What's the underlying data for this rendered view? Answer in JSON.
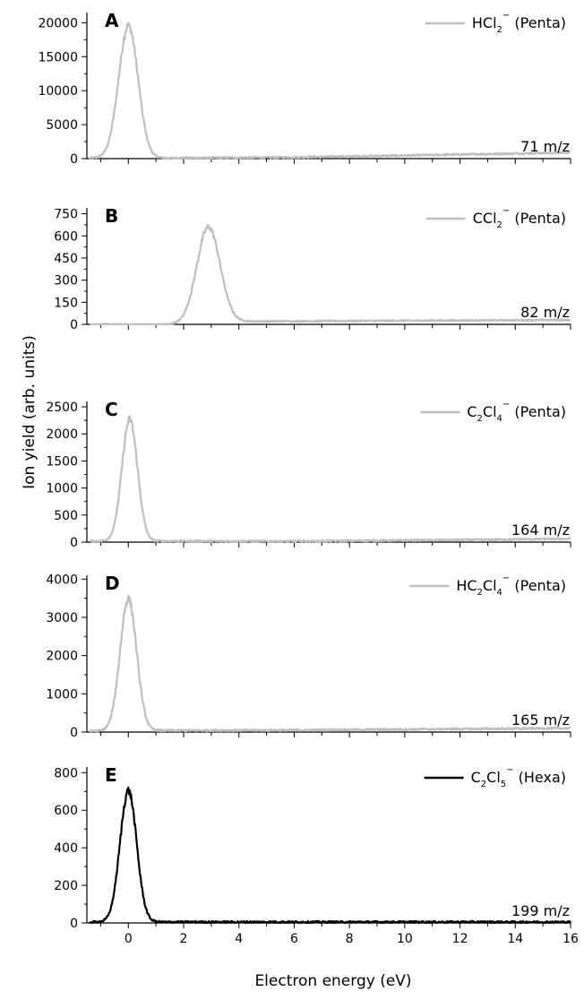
{
  "chart_data": {
    "type": "line",
    "xlabel": "Electron energy (eV)",
    "ylabel": "Ion yield (arb. units)",
    "xlim": [
      -1.5,
      16
    ],
    "xticks": [
      0,
      2,
      4,
      6,
      8,
      10,
      12,
      14,
      16
    ],
    "shared_x_axis": true,
    "panels": [
      {
        "letter": "A",
        "ion": {
          "base": "HCl",
          "sub": "2",
          "sup": "−"
        },
        "molecule": "(Penta)",
        "mz": "71 m/z",
        "color": "#bfbfbf",
        "ylim": [
          0,
          21500
        ],
        "yticks": [
          0,
          5000,
          10000,
          15000,
          20000
        ],
        "peak": {
          "center": 0.0,
          "height": 19500,
          "width": 0.35
        },
        "baseline": [
          [
            -1.4,
            100
          ],
          [
            1.6,
            80
          ],
          [
            6,
            200
          ],
          [
            10,
            450
          ],
          [
            16,
            900
          ]
        ]
      },
      {
        "letter": "B",
        "ion": {
          "base": "CCl",
          "sub": "2",
          "sup": "−"
        },
        "molecule": "(Penta)",
        "mz": "82 m/z",
        "color": "#bfbfbf",
        "ylim": [
          0,
          790
        ],
        "yticks": [
          0,
          150,
          300,
          450,
          600,
          750
        ],
        "peak": {
          "center": 2.9,
          "height": 650,
          "width": 0.42
        },
        "baseline": [
          [
            -1.4,
            0
          ],
          [
            1.5,
            0
          ],
          [
            4.2,
            20
          ],
          [
            10,
            25
          ],
          [
            16,
            30
          ]
        ]
      },
      {
        "letter": "C",
        "ion": {
          "base": "C",
          "sub": "2",
          "base2": "Cl",
          "sub2": "4",
          "sup": "−"
        },
        "molecule": "(Penta)",
        "mz": "164 m/z",
        "color": "#bfbfbf",
        "ylim": [
          0,
          2600
        ],
        "yticks": [
          0,
          500,
          1000,
          1500,
          2000,
          2500
        ],
        "peak": {
          "center": 0.05,
          "height": 2250,
          "width": 0.28
        },
        "baseline": [
          [
            -1.4,
            20
          ],
          [
            1.2,
            20
          ],
          [
            6,
            15
          ],
          [
            12,
            40
          ],
          [
            16,
            60
          ]
        ]
      },
      {
        "letter": "D",
        "ion": {
          "base": "HC",
          "sub": "2",
          "base2": "Cl",
          "sub2": "4",
          "sup": "−"
        },
        "molecule": "(Penta)",
        "mz": "165 m/z",
        "color": "#bfbfbf",
        "ylim": [
          0,
          4100
        ],
        "yticks": [
          0,
          1000,
          2000,
          3000,
          4000
        ],
        "peak": {
          "center": 0.0,
          "height": 3450,
          "width": 0.3
        },
        "baseline": [
          [
            -1.4,
            30
          ],
          [
            1.3,
            40
          ],
          [
            6,
            50
          ],
          [
            12,
            80
          ],
          [
            16,
            100
          ]
        ]
      },
      {
        "letter": "E",
        "ion": {
          "base": "C",
          "sub": "2",
          "base2": "Cl",
          "sub2": "5",
          "sup": "−"
        },
        "molecule": "(Hexa)",
        "mz": "199 m/z",
        "color": "#000000",
        "ylim": [
          0,
          830
        ],
        "yticks": [
          0,
          200,
          400,
          600,
          800
        ],
        "peak": {
          "center": 0.0,
          "height": 700,
          "width": 0.3
        },
        "baseline": [
          [
            -1.4,
            5
          ],
          [
            1.2,
            5
          ],
          [
            8,
            5
          ],
          [
            16,
            5
          ]
        ]
      }
    ]
  }
}
